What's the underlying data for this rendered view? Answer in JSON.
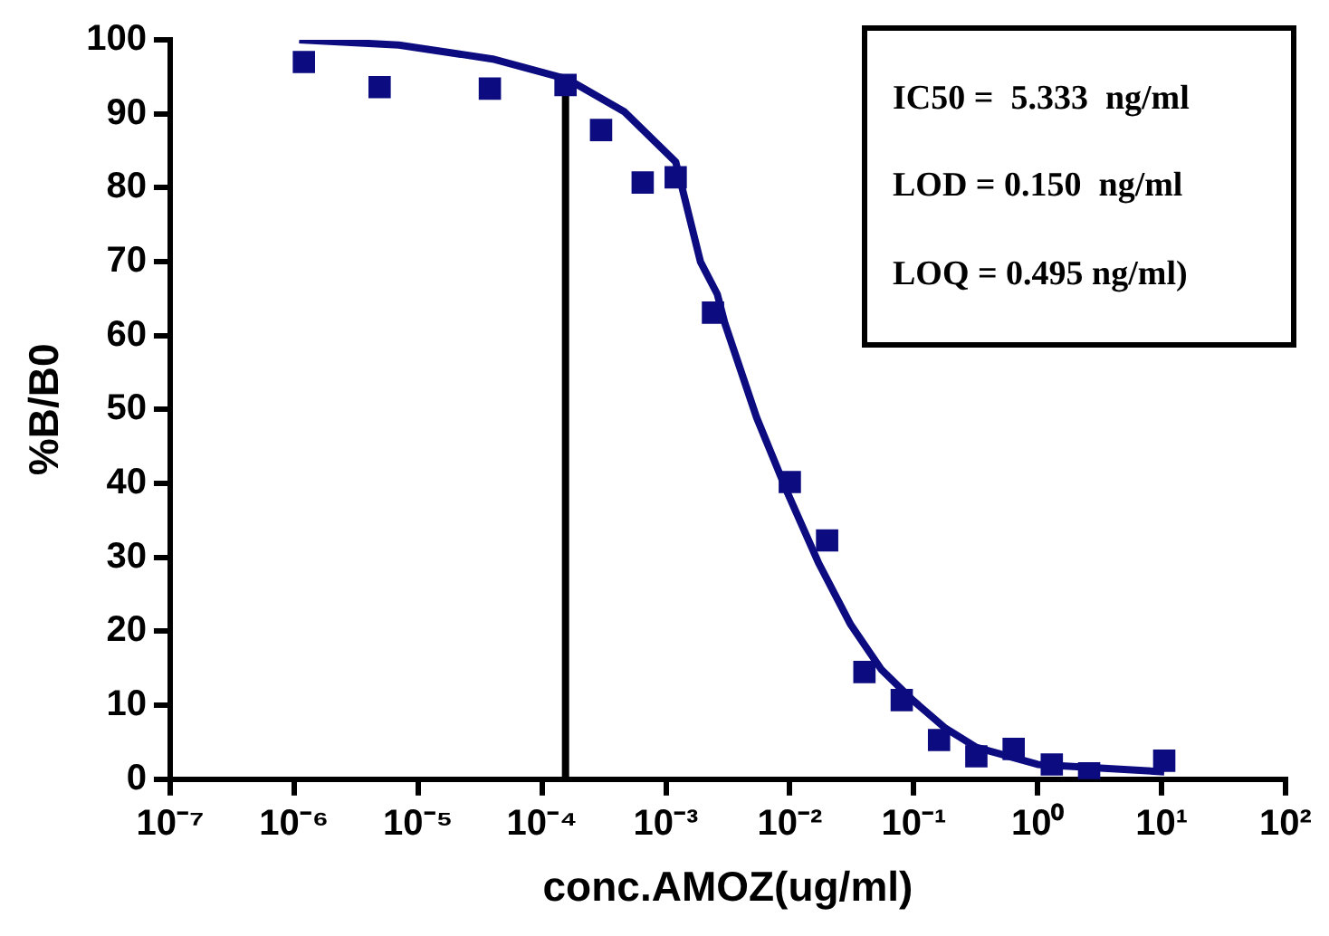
{
  "chart_data": {
    "type": "scatter",
    "xlabel": "conc.AMOZ(ug/ml)",
    "ylabel": "%B/B0",
    "log": "x",
    "grid": false,
    "legend": false,
    "xlim": [
      1e-07,
      100
    ],
    "xticks": [
      {
        "value": 1e-07,
        "label": "10⁻⁷"
      },
      {
        "value": 1e-06,
        "label": "10⁻⁶"
      },
      {
        "value": 1e-05,
        "label": "10⁻⁵"
      },
      {
        "value": 0.0001,
        "label": "10⁻⁴"
      },
      {
        "value": 0.001,
        "label": "10⁻³"
      },
      {
        "value": 0.01,
        "label": "10⁻²"
      },
      {
        "value": 0.1,
        "label": "10⁻¹"
      },
      {
        "value": 1,
        "label": "10⁰"
      },
      {
        "value": 10,
        "label": "10¹"
      },
      {
        "value": 100,
        "label": "10²"
      }
    ],
    "ylim": [
      0,
      100
    ],
    "yticks": [
      0,
      10,
      20,
      30,
      40,
      50,
      60,
      70,
      80,
      90,
      100
    ],
    "annotations": [
      "IC50 =  5.333  ng/ml",
      "LOD = 0.150  ng/ml",
      "LOQ = 0.495 ng/ml)"
    ],
    "series": [
      {
        "type": "scatter",
        "marker": "square",
        "color": "#0c0c80",
        "x": [
          1.2e-06,
          4.9e-06,
          3.8e-05,
          0.000155,
          0.0003,
          0.00065,
          0.0012,
          0.0024,
          0.01,
          0.02,
          0.04,
          0.08,
          0.16,
          0.32,
          0.64,
          1.3,
          2.6,
          10.5
        ],
        "values": [
          97,
          93.6,
          93.4,
          93.9,
          87.8,
          80.7,
          81.4,
          63.1,
          40.2,
          32.3,
          14.5,
          10.7,
          5.3,
          3.1,
          4.1,
          2.0,
          0.8,
          2.5
        ]
      },
      {
        "type": "line",
        "marker": "none",
        "color": "#0c0c80",
        "x": [
          1.1e-06,
          7e-06,
          4e-05,
          0.00016,
          0.00046,
          0.0012,
          0.0019,
          0.0026,
          0.003,
          0.0054,
          0.0096,
          0.017,
          0.031,
          0.055,
          0.098,
          0.18,
          0.32,
          1.0,
          3.2,
          10.5
        ],
        "values": [
          100,
          99.3,
          97.4,
          94.7,
          90.3,
          83.5,
          70,
          65.6,
          61.6,
          48.9,
          38.7,
          29.3,
          20.9,
          14.8,
          10.7,
          6.9,
          4.3,
          2.0,
          1.5,
          1.0
        ]
      },
      {
        "type": "line",
        "marker": "none",
        "color": "#000000",
        "x": [
          0.000155,
          0.000155
        ],
        "values": [
          0,
          93.9
        ]
      }
    ]
  }
}
